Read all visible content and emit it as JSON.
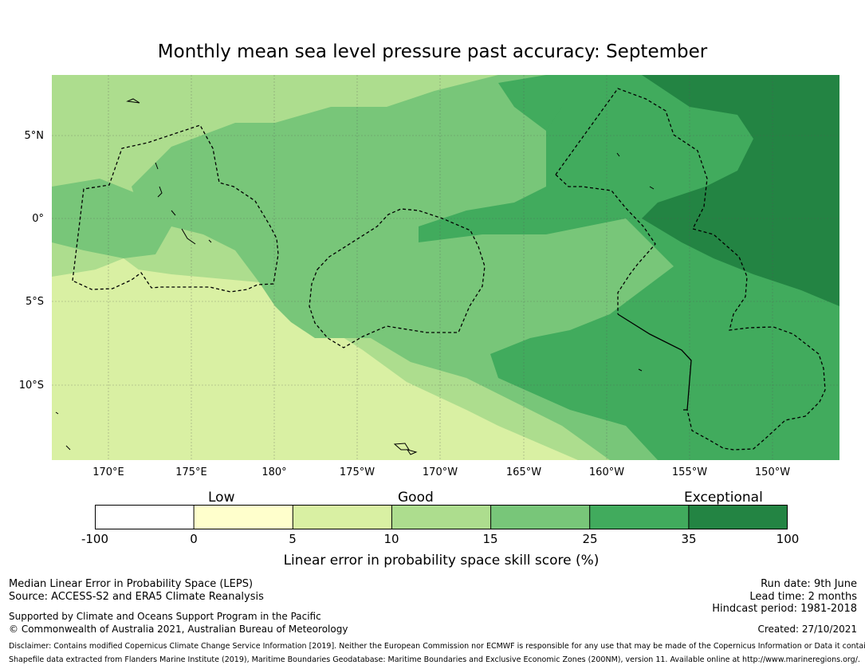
{
  "title": "Monthly mean sea level pressure past accuracy: September",
  "map": {
    "lat_ticks": [
      "5°N",
      "0°",
      "5°S",
      "10°S"
    ],
    "lon_ticks": [
      "170°E",
      "175°E",
      "180°",
      "175°W",
      "170°W",
      "165°W",
      "160°W",
      "155°W",
      "150°W"
    ],
    "skill_colors": {
      "neg": "#ffffff",
      "c0_5": "#ffffcc",
      "c5_10": "#d9f0a3",
      "c10_15": "#addd8e",
      "c15_25": "#78c679",
      "c25_35": "#41ab5d",
      "c35_100": "#238443"
    }
  },
  "colorbar": {
    "categories": [
      "Low",
      "Good",
      "Exceptional"
    ],
    "ticks": [
      "-100",
      "0",
      "5",
      "10",
      "15",
      "25",
      "35",
      "100"
    ],
    "colors": [
      "#ffffff",
      "#ffffcc",
      "#d9f0a3",
      "#addd8e",
      "#78c679",
      "#41ab5d",
      "#238443"
    ],
    "title": "Linear error in probability space skill score (%)"
  },
  "info": {
    "left": {
      "line1": "Median Linear Error in Probability Space (LEPS)",
      "line2": "Source: ACCESS-S2 and ERA5 Climate Reanalysis",
      "line3": "Supported by Climate and Oceans Support Program in the Pacific",
      "line4": "© Commonwealth of Australia 2021, Australian Bureau of Meteorology"
    },
    "right": {
      "run_date": "Run date: 9th June",
      "lead_time": "Lead time: 2 months",
      "hindcast": "Hindcast period: 1981-2018",
      "created": "Created: 27/10/2021"
    },
    "disclaimer1": "Disclaimer: Contains modified Copernicus Climate Change Service Information [2019]. Neither the European Commission nor ECMWF is responsible for any use that may be made of the Copernicus Information or Data it contains.",
    "disclaimer2": "Shapefile data extracted from Flanders Marine Institute (2019), Maritime Boundaries Geodatabase: Maritime Boundaries and Exclusive Economic Zones (200NM), version 11. Available online at http://www.marineregions.org/."
  }
}
